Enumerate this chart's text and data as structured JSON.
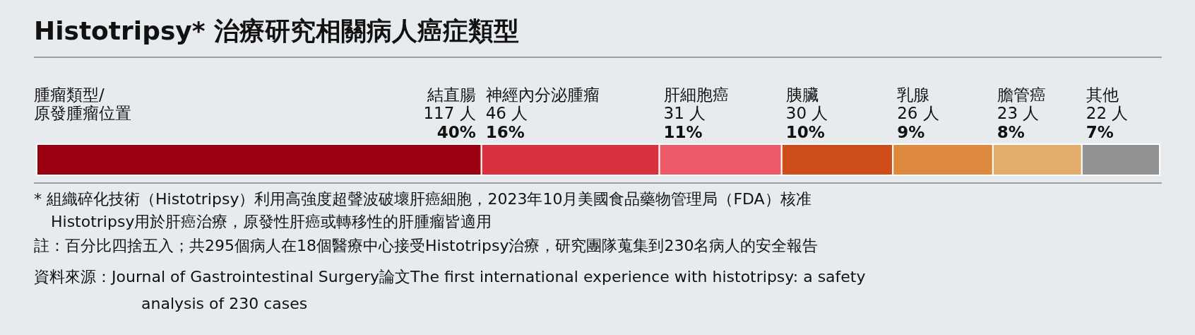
{
  "chart_data": {
    "type": "bar",
    "orientation": "horizontal",
    "stacked": true,
    "title": "Histotripsy* 治療研究相關病人癌症類型",
    "ylabel": "腫瘤類型/原發腫瘤位置",
    "categories": [
      null
    ],
    "series": [
      {
        "name": "結直腸",
        "color": "#9b0010",
        "values": [
          40
        ],
        "value_labels": [
          "40%"
        ]
      },
      {
        "name": "神經內分泌腫瘤",
        "color": "#d9303e",
        "values": [
          16
        ],
        "value_labels": [
          "16%"
        ]
      },
      {
        "name": "肝細胞癌",
        "color": "#ee5a68",
        "values": [
          11
        ],
        "value_labels": [
          "11%"
        ]
      },
      {
        "name": "胰臟",
        "color": "#cf4d1b",
        "values": [
          10
        ],
        "value_labels": [
          "10%"
        ]
      },
      {
        "name": "乳腺",
        "color": "#dd8a3e",
        "values": [
          9
        ],
        "value_labels": [
          "9%"
        ]
      },
      {
        "name": "膽管癌",
        "color": "#e2ad68",
        "values": [
          8
        ],
        "value_labels": [
          "8%"
        ]
      },
      {
        "name": "其他",
        "color": "#929292",
        "values": [
          7
        ],
        "value_labels": [
          "7%"
        ]
      }
    ],
    "annotations": [
      "117 人",
      "46 人",
      "31 人",
      "30 人",
      "26 人",
      "23 人",
      "22 人",
      "* 組織碎化技術（Histotripsy）利用高強度超聲波破壞肝癌細胞，2023年10月美國食品藥物管理局（FDA）核准",
      "Histotripsy用於肝癌治療，原發性肝癌或轉移性的肝腫瘤皆適用",
      "註：百分比四捨五入；共295個病人在18個醫療中心接受Histotripsy治療，研究團隊蒐集到230名病人的安全報告",
      "資料來源：Journal of Gastrointestinal Surgery論文The first international experience with histotripsy: a safety",
      "analysis of 230 cases"
    ]
  }
}
